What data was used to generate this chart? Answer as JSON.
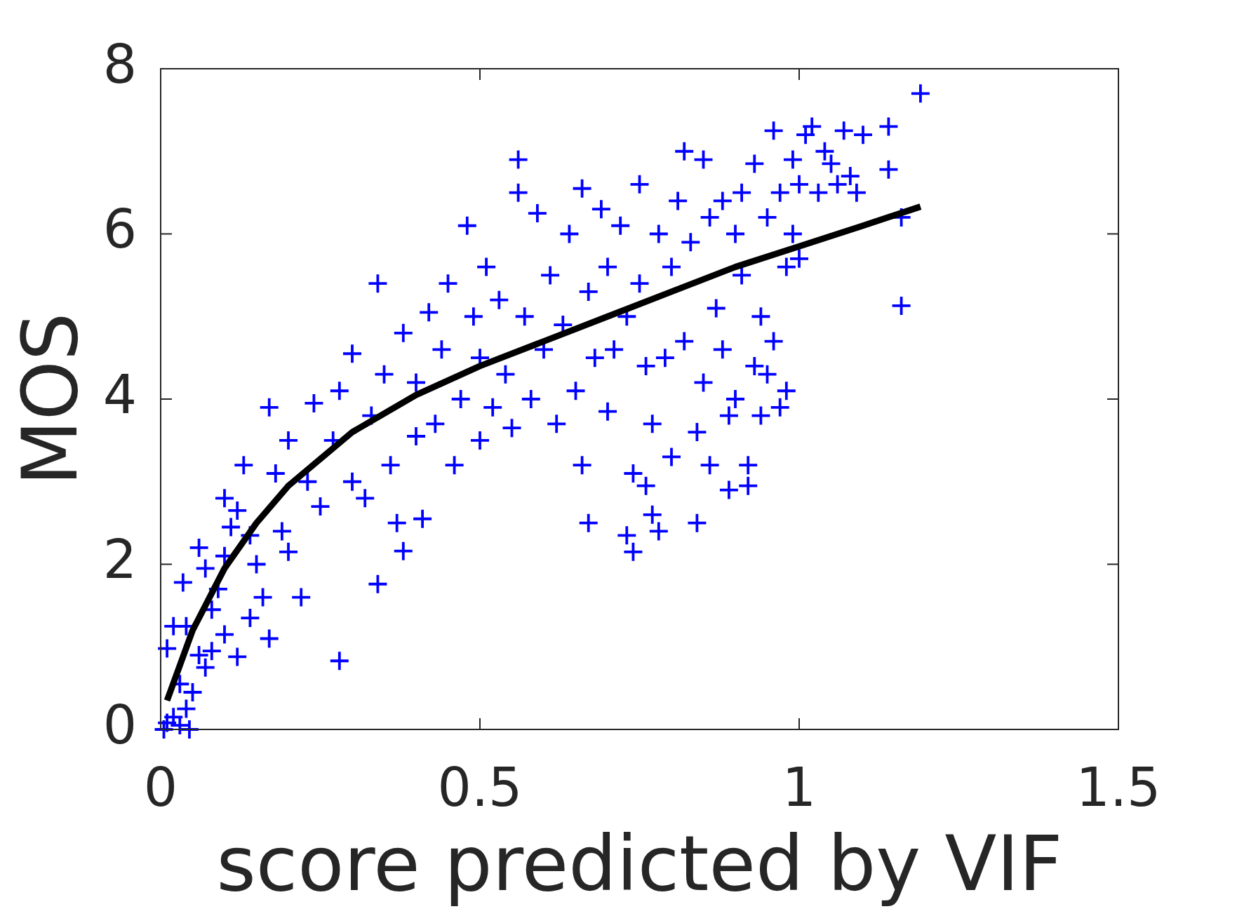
{
  "chart_data": {
    "type": "scatter",
    "xlabel": "score predicted by VIF",
    "ylabel": "MOS",
    "xlim": [
      0,
      1.5
    ],
    "ylim": [
      0,
      8
    ],
    "xticks": [
      0,
      0.5,
      1,
      1.5
    ],
    "yticks": [
      0,
      2,
      4,
      6,
      8
    ],
    "grid": false,
    "legend": false,
    "marker": "cross",
    "series": [
      {
        "type": "scatter",
        "color": "#0000ff",
        "x": [
          0.005,
          0.01,
          0.02,
          0.03,
          0.04,
          0.045,
          0.05,
          0.03,
          0.01,
          0.02,
          0.04,
          0.035,
          0.06,
          0.07,
          0.08,
          0.1,
          0.12,
          0.08,
          0.09,
          0.07,
          0.06,
          0.1,
          0.11,
          0.1,
          0.12,
          0.14,
          0.17,
          0.16,
          0.15,
          0.14,
          0.13,
          0.17,
          0.18,
          0.19,
          0.2,
          0.22,
          0.2,
          0.23,
          0.25,
          0.24,
          0.27,
          0.28,
          0.3,
          0.3,
          0.32,
          0.33,
          0.34,
          0.35,
          0.36,
          0.37,
          0.38,
          0.4,
          0.4,
          0.41,
          0.42,
          0.43,
          0.44,
          0.45,
          0.46,
          0.47,
          0.48,
          0.49,
          0.5,
          0.5,
          0.51,
          0.52,
          0.53,
          0.54,
          0.55,
          0.56,
          0.56,
          0.57,
          0.58,
          0.59,
          0.6,
          0.61,
          0.62,
          0.63,
          0.64,
          0.65,
          0.66,
          0.66,
          0.67,
          0.67,
          0.68,
          0.69,
          0.7,
          0.7,
          0.71,
          0.72,
          0.73,
          0.73,
          0.74,
          0.74,
          0.75,
          0.75,
          0.76,
          0.76,
          0.77,
          0.77,
          0.78,
          0.78,
          0.79,
          0.8,
          0.8,
          0.81,
          0.82,
          0.82,
          0.83,
          0.84,
          0.84,
          0.85,
          0.85,
          0.86,
          0.86,
          0.87,
          0.88,
          0.88,
          0.89,
          0.89,
          0.9,
          0.9,
          0.91,
          0.91,
          0.92,
          0.92,
          0.93,
          0.93,
          0.94,
          0.94,
          0.95,
          0.95,
          0.96,
          0.96,
          0.97,
          0.97,
          0.98,
          0.98,
          0.99,
          0.99,
          1.0,
          1.0,
          1.01,
          1.02,
          1.03,
          1.04,
          1.05,
          1.06,
          1.07,
          1.08,
          1.09,
          1.1,
          1.14,
          1.14,
          1.16,
          1.16,
          1.19,
          0.28,
          0.34,
          0.38
        ],
        "values": [
          0.0,
          0.08,
          0.15,
          0.05,
          0.25,
          0.0,
          0.45,
          0.55,
          0.98,
          1.25,
          1.25,
          1.78,
          0.9,
          0.75,
          0.95,
          1.15,
          0.88,
          1.45,
          1.7,
          1.95,
          2.2,
          2.1,
          2.45,
          2.8,
          2.65,
          1.35,
          1.1,
          1.6,
          2.0,
          2.35,
          3.2,
          3.9,
          3.1,
          2.4,
          2.15,
          1.6,
          3.5,
          3.0,
          2.7,
          3.95,
          3.5,
          4.1,
          3.0,
          4.55,
          2.8,
          3.8,
          5.4,
          4.3,
          3.2,
          2.5,
          4.8,
          3.55,
          4.2,
          2.55,
          5.05,
          3.7,
          4.6,
          5.4,
          3.2,
          4.0,
          6.1,
          5.0,
          3.5,
          4.5,
          5.6,
          3.9,
          5.2,
          4.3,
          3.65,
          6.9,
          6.5,
          5.0,
          4.0,
          6.25,
          4.6,
          5.5,
          3.7,
          4.9,
          6.0,
          4.1,
          6.55,
          3.2,
          5.3,
          2.5,
          4.5,
          6.3,
          5.6,
          3.85,
          4.6,
          6.1,
          5.0,
          2.35,
          2.15,
          3.1,
          6.6,
          5.4,
          2.95,
          4.4,
          3.7,
          2.6,
          6.0,
          2.4,
          4.5,
          5.6,
          3.3,
          6.4,
          7.0,
          4.7,
          5.9,
          3.6,
          2.5,
          4.2,
          6.9,
          6.2,
          3.2,
          5.1,
          6.4,
          4.6,
          3.8,
          2.9,
          6.0,
          4.0,
          6.5,
          5.5,
          3.2,
          2.95,
          6.85,
          4.4,
          5.0,
          3.8,
          6.2,
          4.3,
          7.25,
          4.7,
          3.9,
          6.5,
          5.6,
          4.1,
          6.9,
          6.0,
          6.6,
          5.7,
          7.2,
          7.3,
          6.5,
          7.0,
          6.85,
          6.6,
          7.25,
          6.7,
          6.5,
          7.2,
          6.78,
          7.3,
          5.13,
          6.2,
          7.7,
          0.83,
          1.76,
          2.16
        ]
      },
      {
        "type": "line",
        "color": "#000000",
        "marker": "none",
        "x": [
          0.01,
          0.05,
          0.1,
          0.15,
          0.2,
          0.3,
          0.4,
          0.5,
          0.6,
          0.7,
          0.8,
          0.9,
          1.0,
          1.1,
          1.19
        ],
        "values": [
          0.35,
          1.2,
          1.95,
          2.5,
          2.95,
          3.6,
          4.05,
          4.4,
          4.7,
          5.0,
          5.3,
          5.6,
          5.85,
          6.1,
          6.33
        ]
      }
    ]
  }
}
